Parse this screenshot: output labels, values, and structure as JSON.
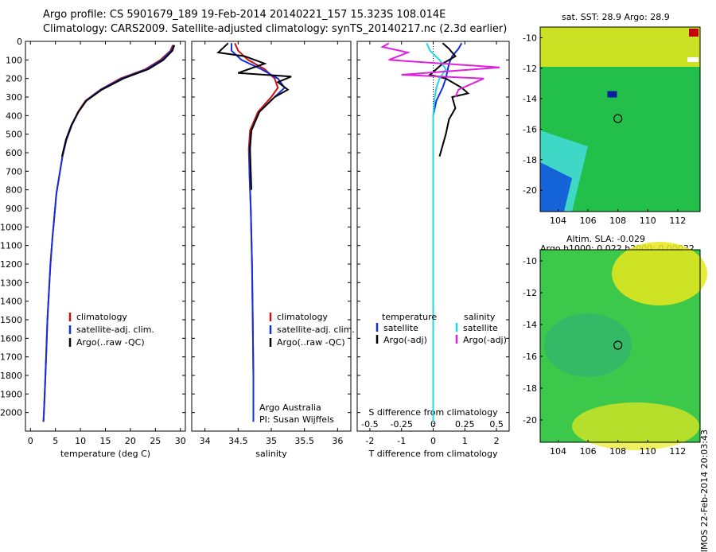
{
  "header": {
    "line1": "Argo profile: CS 5901679_189 19-Feb-2014 20140221_157 15.323S 108.014E",
    "line2": "Climatology: CARS2009. Satellite-adjusted climatology: synTS_20140217.nc (2.3d earlier)"
  },
  "maps": {
    "sst_title": "sat. SST: 28.9 Argo: 28.9",
    "sla_title1": "Altim. SLA: -0.029",
    "sla_title2": "Argo h1000: 0.022 h2000: 0.00032",
    "footer": "IMOS 22-Feb-2014 20:03:43",
    "lon_ticks": [
      "104",
      "106",
      "108",
      "110",
      "112"
    ],
    "lat_ticks": [
      "-10",
      "-12",
      "-14",
      "-16",
      "-18",
      "-20"
    ],
    "colors": {
      "green": "#22c04a",
      "yellow": "#e8e81c",
      "cyan": "#3fd7c6",
      "blue": "#1464d8",
      "darkblue": "#0a1fa0",
      "red": "#c00000"
    },
    "marker": {
      "lon": 108.0,
      "lat": -15.3
    }
  },
  "annotations": {
    "argo_centre": "Argo Australia",
    "pi": "PI: Susan Wijffels"
  },
  "chart_data": [
    {
      "type": "line",
      "xlabel": "temperature (deg C)",
      "ylabel": "",
      "xlim": [
        -1,
        31
      ],
      "ylim": [
        2100,
        0
      ],
      "x_ticks": [
        "0",
        "5",
        "10",
        "15",
        "20",
        "25",
        "30"
      ],
      "y_ticks": [
        "0",
        "100",
        "200",
        "300",
        "400",
        "500",
        "600",
        "700",
        "800",
        "900",
        "1000",
        "1100",
        "1200",
        "1300",
        "1400",
        "1500",
        "1600",
        "1700",
        "1800",
        "1900",
        "2000"
      ],
      "legend": [
        "climatology",
        "satellite-adj. clim.",
        "Argo(..raw -QC)"
      ],
      "series": [
        {
          "name": "climatology",
          "color": "#d01010",
          "x": [
            28.5,
            28,
            26,
            23,
            18,
            14,
            11,
            9.5,
            8.3,
            7.2,
            6.4,
            5.8,
            5.2,
            4.8,
            4.4,
            4.0,
            3.7,
            3.4,
            3.2,
            3.0,
            2.85,
            2.7,
            2.6
          ],
          "y": [
            20,
            50,
            100,
            150,
            200,
            260,
            320,
            380,
            450,
            530,
            620,
            720,
            820,
            940,
            1060,
            1200,
            1350,
            1500,
            1650,
            1800,
            1900,
            2000,
            2050
          ]
        },
        {
          "name": "satellite-adj. clim.",
          "color": "#1030e0",
          "x": [
            28.7,
            28.2,
            26.3,
            23.3,
            18.3,
            14.1,
            11.1,
            9.6,
            8.3,
            7.2,
            6.4,
            5.8,
            5.2,
            4.8,
            4.4,
            4.0,
            3.7,
            3.4,
            3.2,
            3.0,
            2.85,
            2.7,
            2.6
          ],
          "y": [
            20,
            50,
            100,
            150,
            200,
            260,
            320,
            380,
            450,
            530,
            620,
            720,
            820,
            940,
            1060,
            1200,
            1350,
            1500,
            1650,
            1800,
            1900,
            2000,
            2050
          ]
        },
        {
          "name": "Argo(..raw -QC)",
          "color": "#000000",
          "x": [
            28.8,
            28.4,
            26.6,
            23.6,
            18.6,
            14.3,
            11.2,
            9.6,
            8.2,
            7.1,
            6.3
          ],
          "y": [
            20,
            50,
            100,
            150,
            200,
            260,
            320,
            380,
            450,
            530,
            620
          ]
        }
      ]
    },
    {
      "type": "line",
      "xlabel": "salinity",
      "ylabel": "",
      "xlim": [
        33.8,
        36.2
      ],
      "ylim": [
        2100,
        0
      ],
      "x_ticks": [
        "34",
        "34.5",
        "35",
        "35.5",
        "36"
      ],
      "legend": [
        "climatology",
        "satellite-adj. clim.",
        "Argo(..raw -QC)"
      ],
      "series": [
        {
          "name": "climatology",
          "color": "#d01010",
          "x": [
            34.45,
            34.5,
            34.65,
            34.9,
            35.05,
            35.1,
            35.0,
            34.8,
            34.68,
            34.66,
            34.67,
            34.69,
            34.71,
            34.72,
            34.73,
            34.73
          ],
          "y": [
            10,
            50,
            100,
            150,
            200,
            250,
            300,
            380,
            480,
            580,
            700,
            900,
            1200,
            1500,
            1800,
            2050
          ]
        },
        {
          "name": "satellite-adj. clim.",
          "color": "#1030e0",
          "x": [
            34.4,
            34.4,
            34.55,
            34.85,
            35.1,
            35.2,
            35.05,
            34.82,
            34.7,
            34.67,
            34.67,
            34.69,
            34.71,
            34.72,
            34.73,
            34.73
          ],
          "y": [
            10,
            50,
            100,
            150,
            200,
            250,
            300,
            380,
            480,
            580,
            700,
            900,
            1200,
            1500,
            1800,
            2050
          ]
        },
        {
          "name": "Argo(..raw -QC)",
          "color": "#000000",
          "x": [
            34.35,
            34.2,
            34.6,
            34.9,
            34.5,
            35.3,
            35.1,
            35.25,
            35.05,
            34.82,
            34.7,
            34.68,
            34.69,
            34.7
          ],
          "y": [
            10,
            60,
            80,
            120,
            170,
            190,
            220,
            260,
            300,
            380,
            480,
            580,
            700,
            800
          ]
        }
      ]
    },
    {
      "type": "line",
      "xlabel": "T difference from climatology",
      "xlabel2": "S difference from climatology",
      "xlim": [
        -2.4,
        2.4
      ],
      "ylim": [
        2100,
        0
      ],
      "x_ticks": [
        "-2",
        "-1",
        "0",
        "1",
        "2"
      ],
      "x2_ticks": [
        "-0.5",
        "-0.25",
        "0",
        "0.25",
        "0.5"
      ],
      "legend_temperature": [
        "temperature",
        "satellite",
        "Argo(-adj)"
      ],
      "legend_salinity": [
        "salinity",
        "satellite",
        "Argo(-adj)"
      ],
      "series": [
        {
          "name": "satellite",
          "color": "#1030e0",
          "x": [
            0.9,
            0.8,
            0.6,
            0.5,
            0.45,
            0.4,
            0.3,
            0.1,
            0,
            0,
            0,
            0,
            0
          ],
          "y": [
            10,
            40,
            80,
            120,
            160,
            200,
            250,
            320,
            400,
            500,
            700,
            1200,
            2050
          ]
        },
        {
          "name": "Argo(-adj)",
          "color": "#000000",
          "x": [
            0.3,
            0.5,
            0.7,
            0.3,
            -0.1,
            0.4,
            0.9,
            1.1,
            0.6,
            0.7,
            0.5,
            0.4,
            0.2
          ],
          "y": [
            10,
            40,
            80,
            120,
            180,
            200,
            250,
            280,
            300,
            360,
            420,
            500,
            620
          ]
        },
        {
          "name": "satellite",
          "color": "#20d8e0",
          "x": [
            -0.2,
            -0.1,
            0.2,
            0.4,
            0.2,
            0.1,
            0.05,
            0,
            0,
            0
          ],
          "y": [
            10,
            50,
            100,
            150,
            200,
            250,
            300,
            400,
            600,
            2050
          ]
        },
        {
          "name": "Argo(-adj)",
          "color": "#e020e0",
          "x": [
            -1.4,
            -1.6,
            -0.8,
            -1.4,
            2.1,
            -1.0,
            1.6,
            0.8,
            0.7
          ],
          "y": [
            10,
            30,
            60,
            100,
            140,
            180,
            200,
            260,
            300
          ]
        }
      ]
    }
  ]
}
